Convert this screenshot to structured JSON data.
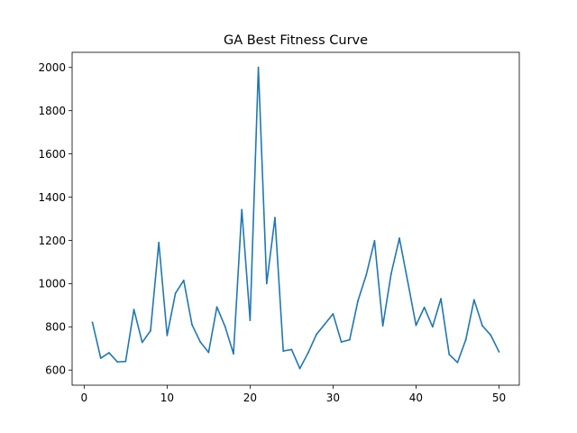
{
  "chart_data": {
    "type": "line",
    "title": "GA Best Fitness Curve",
    "xlabel": "",
    "ylabel": "",
    "xlim": [
      -1.45,
      52.45
    ],
    "ylim": [
      530,
      2070
    ],
    "xticks": [
      0,
      10,
      20,
      30,
      40,
      50
    ],
    "yticks": [
      600,
      800,
      1000,
      1200,
      1400,
      1600,
      1800,
      2000
    ],
    "grid": false,
    "legend": "none",
    "series": [
      {
        "color": "#1f77b4",
        "x": [
          1,
          2,
          3,
          4,
          5,
          6,
          7,
          8,
          9,
          10,
          11,
          12,
          13,
          14,
          15,
          16,
          17,
          18,
          19,
          20,
          21,
          22,
          23,
          24,
          25,
          26,
          27,
          28,
          29,
          30,
          31,
          32,
          33,
          34,
          35,
          36,
          37,
          38,
          39,
          40,
          41,
          42,
          43,
          44,
          45,
          46,
          47,
          48,
          49,
          50
        ],
        "y": [
          820,
          655,
          680,
          638,
          640,
          880,
          728,
          782,
          1190,
          760,
          955,
          1015,
          810,
          730,
          682,
          892,
          800,
          675,
          1342,
          830,
          2000,
          1000,
          1305,
          688,
          695,
          607,
          680,
          765,
          812,
          860,
          730,
          740,
          920,
          1040,
          1198,
          805,
          1045,
          1210,
          1010,
          807,
          890,
          800,
          930,
          672,
          635,
          740,
          925,
          805,
          762,
          685
        ]
      }
    ]
  }
}
